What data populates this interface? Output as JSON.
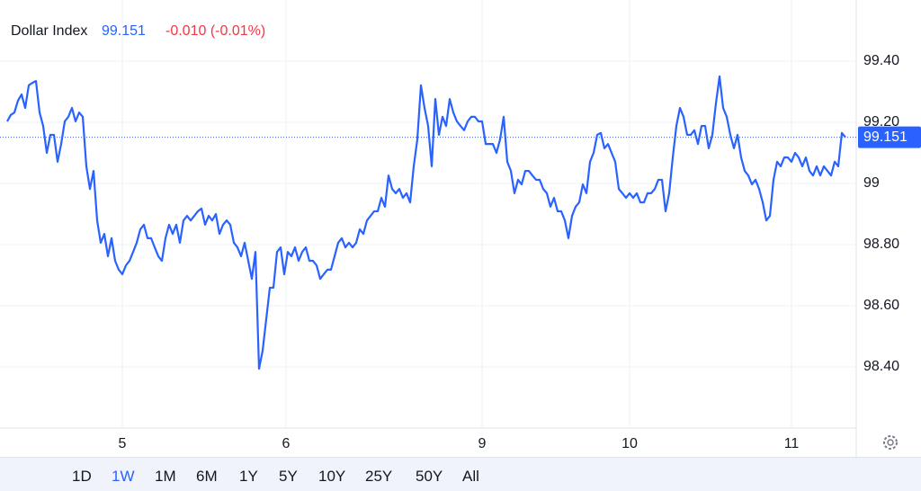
{
  "chart_data": {
    "type": "line",
    "title": "Dollar Index",
    "price": "99.151",
    "change": "-0.010 (-0.01%)",
    "series": [
      {
        "name": "Dollar Index",
        "color": "#2962ff",
        "values": [
          99.203,
          99.224,
          99.232,
          99.271,
          99.291,
          99.247,
          99.321,
          99.329,
          99.335,
          99.232,
          99.188,
          99.1,
          99.159,
          99.159,
          99.071,
          99.129,
          99.203,
          99.218,
          99.247,
          99.203,
          99.232,
          99.218,
          99.056,
          98.982,
          99.041,
          98.879,
          98.806,
          98.835,
          98.762,
          98.821,
          98.747,
          98.718,
          98.703,
          98.732,
          98.747,
          98.776,
          98.806,
          98.85,
          98.865,
          98.821,
          98.821,
          98.791,
          98.762,
          98.747,
          98.821,
          98.865,
          98.835,
          98.865,
          98.806,
          98.879,
          98.894,
          98.879,
          98.894,
          98.909,
          98.918,
          98.865,
          98.894,
          98.879,
          98.9,
          98.835,
          98.865,
          98.879,
          98.865,
          98.806,
          98.791,
          98.762,
          98.806,
          98.747,
          98.688,
          98.776,
          98.394,
          98.453,
          98.556,
          98.659,
          98.659,
          98.776,
          98.791,
          98.703,
          98.776,
          98.762,
          98.791,
          98.747,
          98.776,
          98.791,
          98.747,
          98.747,
          98.732,
          98.688,
          98.703,
          98.718,
          98.718,
          98.762,
          98.806,
          98.821,
          98.791,
          98.806,
          98.791,
          98.806,
          98.85,
          98.835,
          98.879,
          98.894,
          98.909,
          98.909,
          98.953,
          98.924,
          99.026,
          98.982,
          98.968,
          98.982,
          98.953,
          98.968,
          98.938,
          99.056,
          99.144,
          99.321,
          99.247,
          99.188,
          99.056,
          99.276,
          99.159,
          99.218,
          99.188,
          99.276,
          99.232,
          99.203,
          99.188,
          99.174,
          99.203,
          99.218,
          99.218,
          99.203,
          99.203,
          99.129,
          99.129,
          99.129,
          99.1,
          99.144,
          99.218,
          99.071,
          99.041,
          98.968,
          99.012,
          98.997,
          99.041,
          99.041,
          99.026,
          99.012,
          99.012,
          98.982,
          98.968,
          98.924,
          98.953,
          98.909,
          98.909,
          98.879,
          98.821,
          98.894,
          98.924,
          98.938,
          98.997,
          98.968,
          99.071,
          99.1,
          99.159,
          99.165,
          99.115,
          99.129,
          99.1,
          99.071,
          98.982,
          98.968,
          98.953,
          98.968,
          98.953,
          98.968,
          98.938,
          98.938,
          98.968,
          98.968,
          98.982,
          99.012,
          99.012,
          98.909,
          98.968,
          99.085,
          99.188,
          99.247,
          99.218,
          99.159,
          99.159,
          99.174,
          99.129,
          99.188,
          99.188,
          99.115,
          99.159,
          99.262,
          99.35,
          99.247,
          99.218,
          99.159,
          99.115,
          99.159,
          99.085,
          99.041,
          99.026,
          98.997,
          99.012,
          98.982,
          98.938,
          98.879,
          98.894,
          99.012,
          99.071,
          99.056,
          99.085,
          99.085,
          99.071,
          99.1,
          99.085,
          99.056,
          99.085,
          99.041,
          99.026,
          99.056,
          99.026,
          99.056,
          99.041,
          99.026,
          99.071,
          99.056,
          99.165,
          99.151
        ]
      }
    ],
    "last_value": 99.151,
    "xlim": [
      -2,
      236
    ],
    "xticks": [
      {
        "value": 32,
        "label": "5"
      },
      {
        "value": 77.5,
        "label": "6"
      },
      {
        "value": 132,
        "label": "9"
      },
      {
        "value": 173,
        "label": "10"
      },
      {
        "value": 218,
        "label": "11"
      }
    ],
    "ylim": [
      98.2,
      99.6
    ],
    "yticks": [
      {
        "value": 99.4,
        "label": "99.40"
      },
      {
        "value": 99.2,
        "label": "99.20"
      },
      99,
      {
        "value": 98.8,
        "label": "98.80"
      },
      {
        "value": 98.6,
        "label": "98.60"
      },
      {
        "value": 98.4,
        "label": "98.40"
      }
    ],
    "grid": true,
    "ranges": [
      "1D",
      "1W",
      "1M",
      "6M",
      "1Y",
      "5Y",
      "10Y",
      "25Y",
      "50Y",
      "All"
    ],
    "active_range": 1
  }
}
